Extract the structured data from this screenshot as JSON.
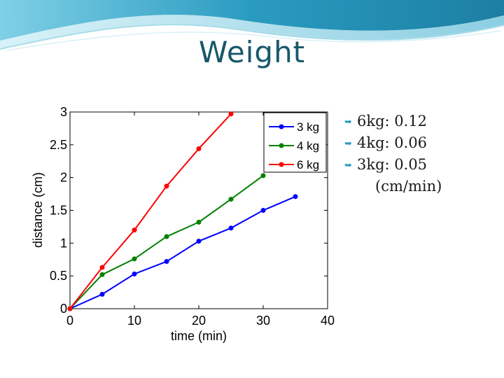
{
  "slide": {
    "title": "Weight",
    "accent_color": "#2a9bc0",
    "title_color": "#17586b"
  },
  "bullets": [
    {
      "icon": "curved-arrow-bullet-icon",
      "text": "6kg: 0.12"
    },
    {
      "icon": "curved-arrow-bullet-icon",
      "text": "4kg: 0.06"
    },
    {
      "icon": "curved-arrow-bullet-icon",
      "text": "3kg: 0.05"
    }
  ],
  "bullet_note": "(cm/min)",
  "chart_data": {
    "type": "line",
    "title": "",
    "xlabel": "time (min)",
    "ylabel": "distance (cm)",
    "xlim": [
      0,
      40
    ],
    "ylim": [
      0,
      3
    ],
    "xticks": [
      "0",
      "10",
      "20",
      "30",
      "40"
    ],
    "yticks": [
      "0",
      "0.5",
      "1",
      "1.5",
      "2",
      "2.5",
      "3"
    ],
    "grid": false,
    "legend_position": "top-right",
    "series": [
      {
        "name": "3 kg",
        "color": "#0000ff",
        "x": [
          0,
          5,
          10,
          15,
          20,
          25,
          30,
          35
        ],
        "y": [
          0,
          0.22,
          0.53,
          0.72,
          1.03,
          1.23,
          1.5,
          1.71
        ]
      },
      {
        "name": "4 kg",
        "color": "#008000",
        "x": [
          0,
          5,
          10,
          15,
          20,
          25,
          30
        ],
        "y": [
          0,
          0.52,
          0.76,
          1.1,
          1.32,
          1.67,
          2.03
        ]
      },
      {
        "name": "6 kg",
        "color": "#ff0000",
        "x": [
          0,
          5,
          10,
          15,
          20,
          25
        ],
        "y": [
          0,
          0.63,
          1.2,
          1.87,
          2.44,
          2.97
        ]
      }
    ]
  }
}
